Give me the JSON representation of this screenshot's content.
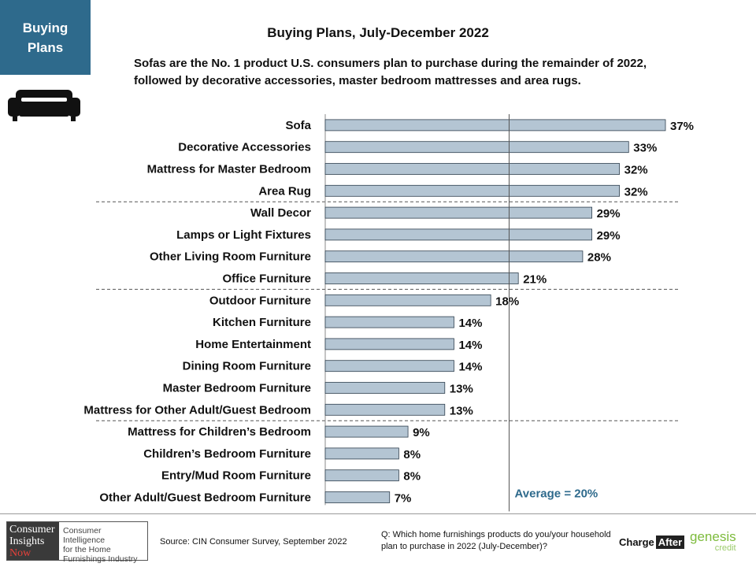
{
  "corner_label": [
    "Buying",
    "Plans"
  ],
  "title": "Buying Plans, July-December 2022",
  "subtitle": "Sofas are the No. 1 product U.S. consumers plan to purchase during the remainder of 2022, followed by decorative accessories, master bedroom mattresses and area rugs.",
  "chart_data": {
    "type": "bar",
    "orientation": "horizontal",
    "categories": [
      "Sofa",
      "Decorative Accessories",
      "Mattress for Master Bedroom",
      "Area Rug",
      "Wall Decor",
      "Lamps or Light Fixtures",
      "Other Living Room Furniture",
      "Office Furniture",
      "Outdoor Furniture",
      "Kitchen Furniture",
      "Home Entertainment",
      "Dining Room Furniture",
      "Master Bedroom Furniture",
      "Mattress for Other Adult/Guest Bedroom",
      "Mattress for Children’s Bedroom",
      "Children’s Bedroom Furniture",
      "Entry/Mud Room Furniture",
      "Other Adult/Guest Bedroom Furniture"
    ],
    "values": [
      37,
      33,
      32,
      32,
      29,
      29,
      28,
      21,
      18,
      14,
      14,
      14,
      13,
      13,
      9,
      8,
      8,
      7
    ],
    "value_labels": [
      "37%",
      "33%",
      "32%",
      "32%",
      "29%",
      "29%",
      "28%",
      "21%",
      "18%",
      "14%",
      "14%",
      "14%",
      "13%",
      "13%",
      "9%",
      "8%",
      "8%",
      "7%"
    ],
    "xlim": [
      0,
      37
    ],
    "average": 20,
    "average_label": "Average = 20%",
    "group_dividers_after_index": [
      3,
      7,
      13
    ],
    "bar_color": "#b4c5d3",
    "bar_edge_color": "#2f3f4e",
    "average_label_color": "#2e6a8c"
  },
  "footer": {
    "logo_dark_lines": [
      "Consumer",
      "Insights",
      "Now"
    ],
    "logo_light_lines": [
      "Consumer Intelligence",
      "for the Home",
      "Furnishings Industry"
    ],
    "source": "Source: CIN Consumer Survey, September  2022",
    "question": "Q: Which home furnishings products do you/your household plan to purchase in 2022 (July-December)?",
    "chargeafter": [
      "Charge",
      "After"
    ],
    "genesis": [
      "genesis",
      "credit"
    ]
  },
  "colors": {
    "brand_blue": "#2e6a8c"
  }
}
